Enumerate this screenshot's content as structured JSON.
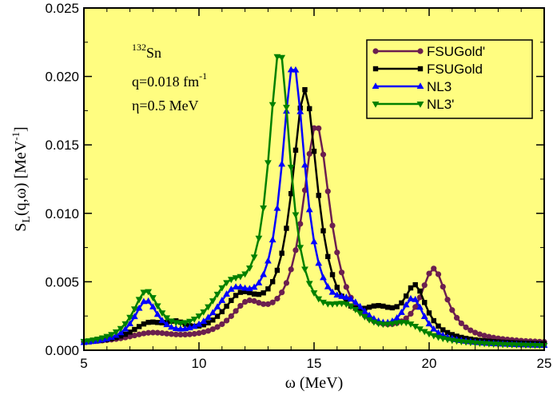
{
  "chart_data": {
    "type": "line",
    "title": "",
    "xlabel": "ω (MeV)",
    "ylabel_main": "S",
    "ylabel_sub": "L",
    "ylabel_rest": "(q,ω) [MeV",
    "ylabel_sup": "-1",
    "ylabel_end": "]",
    "xlim": [
      5,
      25
    ],
    "ylim": [
      0,
      0.025
    ],
    "x_ticks": [
      5,
      10,
      15,
      20,
      25
    ],
    "x_tick_labels": [
      "5",
      "10",
      "15",
      "20",
      "25"
    ],
    "y_ticks": [
      0,
      0.005,
      0.01,
      0.015,
      0.02,
      0.025
    ],
    "y_tick_labels": [
      "0.000",
      "0.005",
      "0.010",
      "0.015",
      "0.020",
      "0.025"
    ],
    "background": "#fffd80",
    "grid": false,
    "legend_position": "top-right",
    "annotations": {
      "nucleus_sup": "132",
      "nucleus": "Sn",
      "q_text": "q=0.018 fm",
      "q_sup": "-1",
      "eta_text": "η=0.5 MeV"
    },
    "series": [
      {
        "name": "FSUGold'",
        "color": "#6b1f4f",
        "marker": "circle",
        "peaks": [
          [
            7.9,
            0.0006,
            1.2
          ],
          [
            12.1,
            0.0022,
            0.9
          ],
          [
            15.1,
            0.0158,
            0.75
          ],
          [
            20.2,
            0.0052,
            0.7
          ]
        ],
        "baseline": 0.0004
      },
      {
        "name": "FSUGold",
        "color": "#000000",
        "marker": "square",
        "peaks": [
          [
            7.8,
            0.0012,
            0.9
          ],
          [
            9.0,
            0.0008,
            0.6
          ],
          [
            11.8,
            0.0027,
            1.0
          ],
          [
            14.6,
            0.0182,
            0.7
          ],
          [
            17.8,
            0.0016,
            1.0
          ],
          [
            19.4,
            0.0036,
            0.6
          ]
        ],
        "baseline": 0.0003
      },
      {
        "name": "NL3",
        "color": "#0000ff",
        "marker": "triangle-up",
        "peaks": [
          [
            7.7,
            0.003,
            0.65
          ],
          [
            11.5,
            0.003,
            1.0
          ],
          [
            14.1,
            0.02,
            0.65
          ],
          [
            16.6,
            0.002,
            1.0
          ],
          [
            19.3,
            0.003,
            0.6
          ]
        ],
        "baseline": 0.0002
      },
      {
        "name": "NL3'",
        "color": "#008000",
        "marker": "triangle-down",
        "peaks": [
          [
            7.7,
            0.0036,
            0.7
          ],
          [
            11.3,
            0.0032,
            1.1
          ],
          [
            13.5,
            0.0208,
            0.6
          ],
          [
            16.4,
            0.002,
            1.1
          ],
          [
            19.0,
            0.0012,
            1.0
          ]
        ],
        "baseline": 0.0002
      }
    ]
  }
}
